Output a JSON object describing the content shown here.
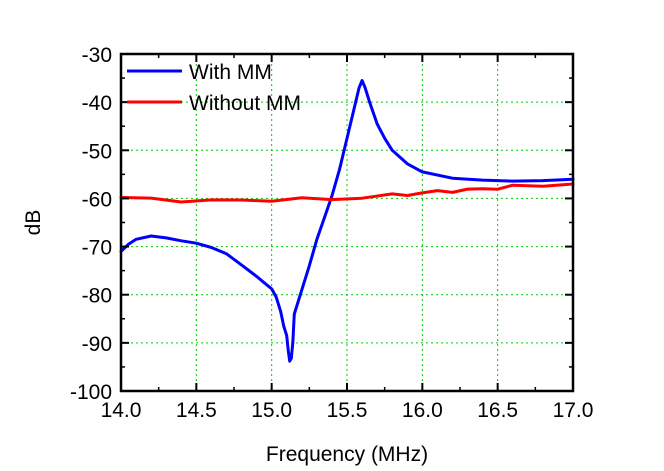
{
  "chart_data": {
    "type": "line",
    "xlabel": "Frequency (MHz)",
    "ylabel": "dB",
    "xlim": [
      14.0,
      17.0
    ],
    "ylim": [
      -100,
      -30
    ],
    "grid": true,
    "legend_position": "top-left",
    "x_ticks": [
      "14.0",
      "14.5",
      "15.0",
      "15.5",
      "16.0",
      "16.5",
      "17.0"
    ],
    "y_ticks": [
      "-30",
      "-40",
      "-50",
      "-60",
      "-70",
      "-80",
      "-90",
      "-100"
    ],
    "colors": {
      "with_mm": "#0000ff",
      "without_mm": "#ff0000",
      "grid": "#00cc00",
      "axis": "#000000"
    },
    "series": [
      {
        "name": "With MM",
        "color": "#0000ff",
        "x": [
          14.0,
          14.05,
          14.1,
          14.2,
          14.3,
          14.4,
          14.5,
          14.6,
          14.7,
          14.8,
          14.9,
          14.95,
          15.0,
          15.03,
          15.06,
          15.08,
          15.1,
          15.11,
          15.12,
          15.13,
          15.14,
          15.15,
          15.2,
          15.25,
          15.3,
          15.35,
          15.4,
          15.45,
          15.5,
          15.55,
          15.58,
          15.6,
          15.62,
          15.65,
          15.7,
          15.75,
          15.8,
          15.9,
          16.0,
          16.2,
          16.4,
          16.6,
          16.8,
          17.0
        ],
        "y": [
          -71,
          -69.5,
          -68.5,
          -67.8,
          -68.2,
          -68.8,
          -69.3,
          -70.2,
          -71.5,
          -73.8,
          -76.2,
          -77.5,
          -78.8,
          -80.5,
          -83.5,
          -86.5,
          -88.5,
          -91.5,
          -93.8,
          -93.2,
          -90.0,
          -84.0,
          -79.0,
          -74.0,
          -68.5,
          -64.0,
          -59.5,
          -54.0,
          -47.5,
          -41.0,
          -37.0,
          -35.5,
          -37.0,
          -40.0,
          -44.5,
          -47.5,
          -50.0,
          -52.8,
          -54.5,
          -55.8,
          -56.2,
          -56.4,
          -56.3,
          -56.0
        ]
      },
      {
        "name": "Without MM",
        "color": "#ff0000",
        "x": [
          14.0,
          14.2,
          14.4,
          14.6,
          14.8,
          15.0,
          15.2,
          15.4,
          15.6,
          15.8,
          15.9,
          16.0,
          16.1,
          16.2,
          16.3,
          16.4,
          16.5,
          16.6,
          16.8,
          17.0
        ],
        "y": [
          -59.8,
          -60.2,
          -60.4,
          -60.5,
          -60.4,
          -60.3,
          -60.2,
          -60.1,
          -59.8,
          -59.4,
          -59.1,
          -58.9,
          -58.6,
          -58.4,
          -58.3,
          -58.0,
          -57.8,
          -57.6,
          -57.3,
          -57.0
        ]
      }
    ]
  }
}
